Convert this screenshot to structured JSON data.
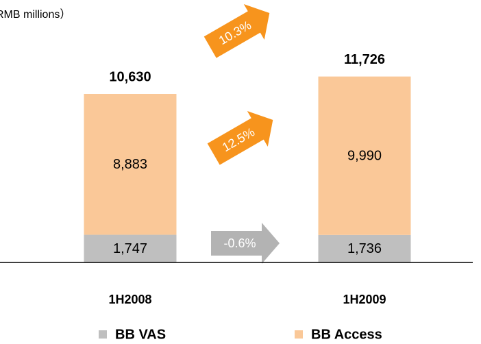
{
  "chart_data": {
    "type": "stacked_bar",
    "subtitle": "RMB millions）",
    "categories": [
      "1H2008",
      "1H2009"
    ],
    "series": [
      {
        "name": "BB VAS",
        "color": "#bfbfbf",
        "values": [
          1747,
          1736
        ],
        "value_labels": [
          "1,747",
          "1,736"
        ]
      },
      {
        "name": "BB Access",
        "color": "#fac898",
        "values": [
          8883,
          9990
        ],
        "value_labels": [
          "8,883",
          "9,990"
        ]
      }
    ],
    "totals": [
      10630,
      11726
    ],
    "total_labels": [
      "10,630",
      "11,726"
    ],
    "ylim": [
      0,
      16550
    ],
    "annotations": [
      {
        "text": "10.3%",
        "color": "#f7941d"
      },
      {
        "text": "12.5%",
        "color": "#f7941d"
      },
      {
        "text": "-0.6%",
        "color": "#b3b3b3"
      }
    ]
  }
}
